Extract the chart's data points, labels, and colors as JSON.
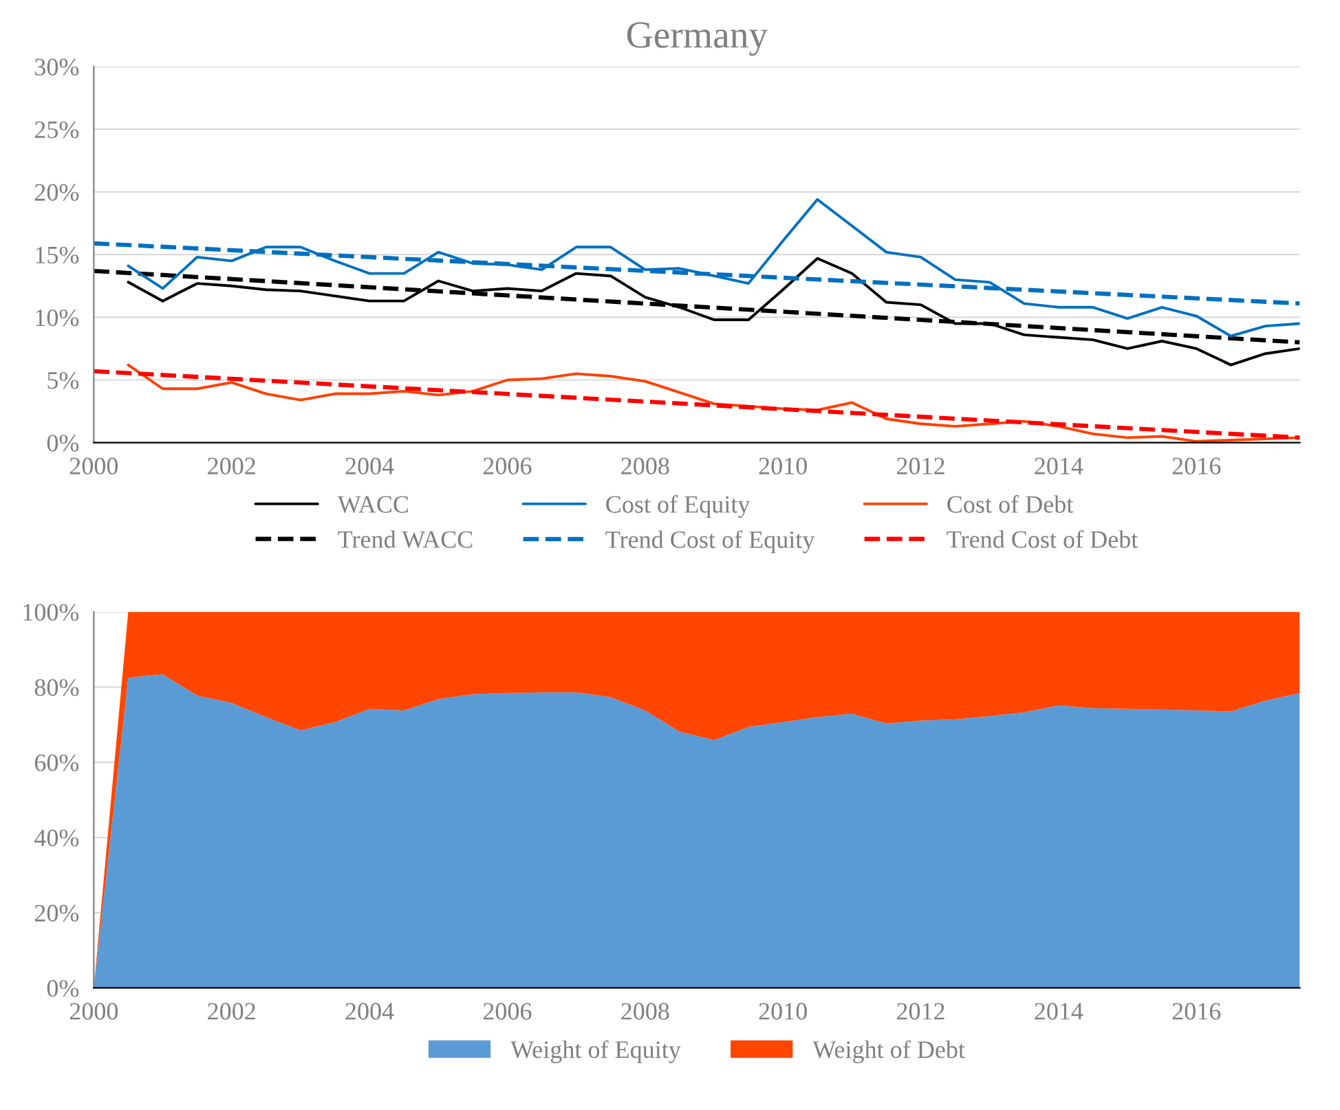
{
  "chart_data": [
    {
      "type": "line",
      "title": "Germany",
      "x": [
        "2000-07",
        "2001-01",
        "2001-07",
        "2002-01",
        "2002-07",
        "2003-01",
        "2003-07",
        "2004-01",
        "2004-07",
        "2005-01",
        "2005-07",
        "2006-01",
        "2006-07",
        "2007-01",
        "2007-07",
        "2008-01",
        "2008-07",
        "2009-01",
        "2009-07",
        "2010-01",
        "2010-07",
        "2011-01",
        "2011-07",
        "2012-01",
        "2012-07",
        "2013-01",
        "2013-07",
        "2014-01",
        "2014-07",
        "2015-01",
        "2015-07",
        "2016-01",
        "2016-07",
        "2017-01",
        "2017-07"
      ],
      "series": [
        {
          "name": "WACC",
          "color": "#000000",
          "line_style": "solid",
          "values": [
            12.8,
            11.3,
            12.7,
            12.5,
            12.2,
            12.1,
            11.7,
            11.3,
            11.3,
            12.9,
            12.1,
            12.3,
            12.1,
            13.5,
            13.3,
            11.6,
            10.8,
            9.8,
            9.8,
            12.2,
            14.7,
            13.5,
            11.2,
            11.0,
            9.5,
            9.5,
            8.6,
            8.4,
            8.2,
            7.5,
            8.1,
            7.5,
            6.2,
            7.1,
            7.5
          ]
        },
        {
          "name": "Trend WACC",
          "color": "#000000",
          "line_style": "dashed",
          "x": [
            "2000-01",
            "2017-07"
          ],
          "values": [
            13.7,
            8.0
          ]
        },
        {
          "name": "Cost of Equity",
          "color": "#0070c0",
          "line_style": "solid",
          "values": [
            14.1,
            12.3,
            14.8,
            14.5,
            15.6,
            15.6,
            14.5,
            13.5,
            13.5,
            15.2,
            14.3,
            14.2,
            13.8,
            15.6,
            15.6,
            13.8,
            13.9,
            13.3,
            12.7,
            16.1,
            19.4,
            17.3,
            15.2,
            14.8,
            13.0,
            12.8,
            11.1,
            10.8,
            10.8,
            9.9,
            10.8,
            10.1,
            8.5,
            9.3,
            9.5
          ]
        },
        {
          "name": "Trend Cost of Equity",
          "color": "#0070c0",
          "line_style": "dashed",
          "x": [
            "2000-01",
            "2017-07"
          ],
          "values": [
            15.9,
            11.1
          ]
        },
        {
          "name": "Cost of Debt",
          "color": "#ff4000",
          "line_style": "solid",
          "values": [
            6.2,
            4.3,
            4.3,
            4.8,
            3.9,
            3.4,
            3.9,
            3.9,
            4.1,
            3.8,
            4.1,
            5.0,
            5.1,
            5.5,
            5.3,
            4.9,
            4.0,
            3.1,
            2.9,
            2.7,
            2.6,
            3.2,
            1.9,
            1.5,
            1.3,
            1.5,
            1.7,
            1.3,
            0.7,
            0.4,
            0.5,
            0.1,
            0.2,
            0.3,
            0.4
          ]
        },
        {
          "name": "Trend Cost of Debt",
          "color": "#ff0000",
          "line_style": "dashed",
          "x": [
            "2000-01",
            "2017-07"
          ],
          "values": [
            5.7,
            0.4
          ]
        }
      ],
      "xlim": [
        "2000-01",
        "2017-07"
      ],
      "xticks": [
        "2000",
        "2002",
        "2004",
        "2006",
        "2008",
        "2010",
        "2012",
        "2014",
        "2016"
      ],
      "ylim": [
        0,
        30
      ],
      "yticks": [
        {
          "value": 0,
          "label": "0%"
        },
        {
          "value": 5,
          "label": "5%"
        },
        {
          "value": 10,
          "label": "10%"
        },
        {
          "value": 15,
          "label": "15%"
        },
        {
          "value": 20,
          "label": "20%"
        },
        {
          "value": 25,
          "label": "25%"
        },
        {
          "value": 30,
          "label": "30%"
        }
      ],
      "grid": "y",
      "legend": "bottom"
    },
    {
      "type": "area",
      "stacked": true,
      "x": [
        "2000-01",
        "2000-07",
        "2001-01",
        "2001-07",
        "2002-01",
        "2002-07",
        "2003-01",
        "2003-07",
        "2004-01",
        "2004-07",
        "2005-01",
        "2005-07",
        "2006-01",
        "2006-07",
        "2007-01",
        "2007-07",
        "2008-01",
        "2008-07",
        "2009-01",
        "2009-07",
        "2010-01",
        "2010-07",
        "2011-01",
        "2011-07",
        "2012-01",
        "2012-07",
        "2013-01",
        "2013-07",
        "2014-01",
        "2014-07",
        "2015-01",
        "2015-07",
        "2016-01",
        "2016-07",
        "2017-01",
        "2017-07"
      ],
      "series": [
        {
          "name": "Weight of Equity",
          "color": "#5b9bd5",
          "values": [
            0,
            82.5,
            83.4,
            77.7,
            75.8,
            72.0,
            68.5,
            70.7,
            74.2,
            73.8,
            76.8,
            78.1,
            78.4,
            78.6,
            78.6,
            77.3,
            73.8,
            68.1,
            65.9,
            69.4,
            70.7,
            72.0,
            72.9,
            70.3,
            71.1,
            71.4,
            72.3,
            73.3,
            75.1,
            74.4,
            74.2,
            74.0,
            73.8,
            73.5,
            76.4,
            78.4
          ]
        },
        {
          "name": "Weight of Debt",
          "color": "#ff4500",
          "values": [
            0,
            17.5,
            16.6,
            22.3,
            24.2,
            28.0,
            31.5,
            29.3,
            25.8,
            26.2,
            23.2,
            21.9,
            21.6,
            21.4,
            21.4,
            22.7,
            26.2,
            31.9,
            34.1,
            30.6,
            29.3,
            28.0,
            27.1,
            29.7,
            28.9,
            28.6,
            27.7,
            26.7,
            24.9,
            25.6,
            25.8,
            26.0,
            26.2,
            26.5,
            23.6,
            21.6
          ]
        }
      ],
      "xlim": [
        "2000-01",
        "2017-07"
      ],
      "xticks": [
        "2000",
        "2002",
        "2004",
        "2006",
        "2008",
        "2010",
        "2012",
        "2014",
        "2016"
      ],
      "ylim": [
        0,
        100
      ],
      "yticks": [
        {
          "value": 0,
          "label": "0%"
        },
        {
          "value": 20,
          "label": "20%"
        },
        {
          "value": 40,
          "label": "40%"
        },
        {
          "value": 60,
          "label": "60%"
        },
        {
          "value": 80,
          "label": "80%"
        },
        {
          "value": 100,
          "label": "100%"
        }
      ],
      "grid": "y",
      "legend": "bottom"
    }
  ]
}
